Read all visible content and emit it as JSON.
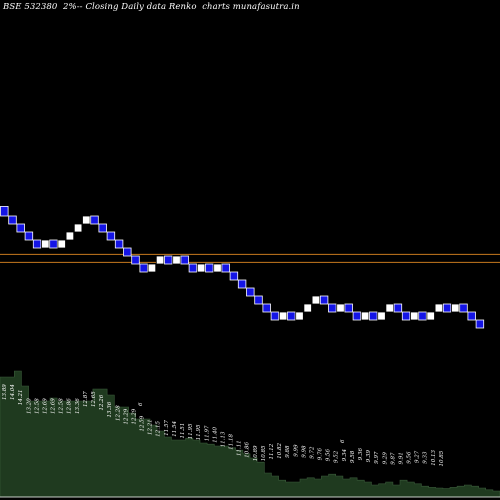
{
  "title": "BSE 532380  2%-- Closing Daily data Renko  charts munafasutra.in",
  "chart_data": {
    "type": "renko",
    "brick_size_pct": 2,
    "reference_lines": [
      12.1,
      11.85
    ],
    "bricks": [
      {
        "open": 13.6,
        "close": 13.3,
        "dir": "down"
      },
      {
        "open": 13.3,
        "close": 13.05,
        "dir": "down"
      },
      {
        "open": 13.05,
        "close": 12.8,
        "dir": "down"
      },
      {
        "open": 12.8,
        "close": 12.55,
        "dir": "down"
      },
      {
        "open": 12.55,
        "close": 12.3,
        "dir": "down"
      },
      {
        "open": 12.3,
        "close": 12.55,
        "dir": "up"
      },
      {
        "open": 12.55,
        "close": 12.3,
        "dir": "down"
      },
      {
        "open": 12.3,
        "close": 12.55,
        "dir": "up"
      },
      {
        "open": 12.55,
        "close": 12.8,
        "dir": "up"
      },
      {
        "open": 12.8,
        "close": 13.05,
        "dir": "up"
      },
      {
        "open": 13.05,
        "close": 13.3,
        "dir": "up"
      },
      {
        "open": 13.3,
        "close": 13.05,
        "dir": "down"
      },
      {
        "open": 13.05,
        "close": 12.8,
        "dir": "down"
      },
      {
        "open": 12.8,
        "close": 12.55,
        "dir": "down"
      },
      {
        "open": 12.55,
        "close": 12.3,
        "dir": "down"
      },
      {
        "open": 12.3,
        "close": 12.05,
        "dir": "down"
      },
      {
        "open": 12.05,
        "close": 11.8,
        "dir": "down"
      },
      {
        "open": 11.8,
        "close": 11.55,
        "dir": "down"
      },
      {
        "open": 11.55,
        "close": 11.8,
        "dir": "up"
      },
      {
        "open": 11.8,
        "close": 12.05,
        "dir": "up"
      },
      {
        "open": 12.05,
        "close": 11.8,
        "dir": "down"
      },
      {
        "open": 11.8,
        "close": 12.05,
        "dir": "up"
      },
      {
        "open": 12.05,
        "close": 11.8,
        "dir": "down"
      },
      {
        "open": 11.8,
        "close": 11.55,
        "dir": "down"
      },
      {
        "open": 11.55,
        "close": 11.8,
        "dir": "up"
      },
      {
        "open": 11.8,
        "close": 11.55,
        "dir": "down"
      },
      {
        "open": 11.55,
        "close": 11.8,
        "dir": "up"
      },
      {
        "open": 11.8,
        "close": 11.55,
        "dir": "down"
      },
      {
        "open": 11.55,
        "close": 11.3,
        "dir": "down"
      },
      {
        "open": 11.3,
        "close": 11.05,
        "dir": "down"
      },
      {
        "open": 11.05,
        "close": 10.8,
        "dir": "down"
      },
      {
        "open": 10.8,
        "close": 10.55,
        "dir": "down"
      },
      {
        "open": 10.55,
        "close": 10.3,
        "dir": "down"
      },
      {
        "open": 10.3,
        "close": 10.05,
        "dir": "down"
      },
      {
        "open": 10.05,
        "close": 10.3,
        "dir": "up"
      },
      {
        "open": 10.3,
        "close": 10.05,
        "dir": "down"
      },
      {
        "open": 10.05,
        "close": 10.3,
        "dir": "up"
      },
      {
        "open": 10.3,
        "close": 10.55,
        "dir": "up"
      },
      {
        "open": 10.55,
        "close": 10.8,
        "dir": "up"
      },
      {
        "open": 10.8,
        "close": 10.55,
        "dir": "down"
      },
      {
        "open": 10.55,
        "close": 10.3,
        "dir": "down"
      },
      {
        "open": 10.3,
        "close": 10.55,
        "dir": "up"
      },
      {
        "open": 10.55,
        "close": 10.3,
        "dir": "down"
      },
      {
        "open": 10.3,
        "close": 10.05,
        "dir": "down"
      },
      {
        "open": 10.05,
        "close": 10.3,
        "dir": "up"
      },
      {
        "open": 10.3,
        "close": 10.05,
        "dir": "down"
      },
      {
        "open": 10.05,
        "close": 10.3,
        "dir": "up"
      },
      {
        "open": 10.3,
        "close": 10.55,
        "dir": "up"
      },
      {
        "open": 10.55,
        "close": 10.3,
        "dir": "down"
      },
      {
        "open": 10.3,
        "close": 10.05,
        "dir": "down"
      },
      {
        "open": 10.05,
        "close": 10.3,
        "dir": "up"
      },
      {
        "open": 10.3,
        "close": 10.05,
        "dir": "down"
      },
      {
        "open": 10.05,
        "close": 10.3,
        "dir": "up"
      },
      {
        "open": 10.3,
        "close": 10.55,
        "dir": "up"
      },
      {
        "open": 10.55,
        "close": 10.3,
        "dir": "down"
      },
      {
        "open": 10.3,
        "close": 10.55,
        "dir": "up"
      },
      {
        "open": 10.55,
        "close": 10.3,
        "dir": "down"
      },
      {
        "open": 10.3,
        "close": 10.05,
        "dir": "down"
      },
      {
        "open": 10.05,
        "close": 9.8,
        "dir": "down"
      }
    ],
    "price_labels": [
      "13.89",
      "14.04",
      "14.21",
      "13.20",
      "12.58",
      "12.69",
      "12.69",
      "12.58",
      "12.86",
      "13.36",
      "12.87",
      "12.65",
      "12.26",
      "13.36",
      "12.28",
      "12.29",
      "12.29",
      "12.59",
      "12.21",
      "12.15",
      "11.57",
      "11.54",
      "11.51",
      "11.95",
      "11.95",
      "11.97",
      "11.40",
      "11.13",
      "11.18",
      "11.11",
      "10.86",
      "10.89",
      "10.85",
      "11.12",
      "10.82",
      "9.88",
      "9.99",
      "9.98",
      "9.72",
      "9.76",
      "9.56",
      "9.52",
      "9.34",
      "9.58",
      "9.36",
      "9.39",
      "9.97",
      "9.29",
      "9.87",
      "9.91",
      "9.56",
      "9.27",
      "9.33",
      "10.13",
      "10.85"
    ],
    "extra_labels": [
      "6",
      "6"
    ],
    "volume": [
      200,
      200,
      210,
      185,
      160,
      160,
      160,
      165,
      160,
      160,
      160,
      160,
      160,
      180,
      180,
      170,
      150,
      150,
      140,
      130,
      130,
      120,
      110,
      100,
      95,
      95,
      98,
      95,
      90,
      88,
      85,
      85,
      82,
      78,
      72,
      65,
      58,
      40,
      35,
      28,
      25,
      25,
      30,
      32,
      30,
      35,
      38,
      35,
      30,
      32,
      28,
      25,
      20,
      22,
      25,
      20,
      28,
      25,
      22,
      18,
      16,
      15,
      14,
      16,
      18,
      20,
      18,
      15,
      12,
      10
    ]
  }
}
